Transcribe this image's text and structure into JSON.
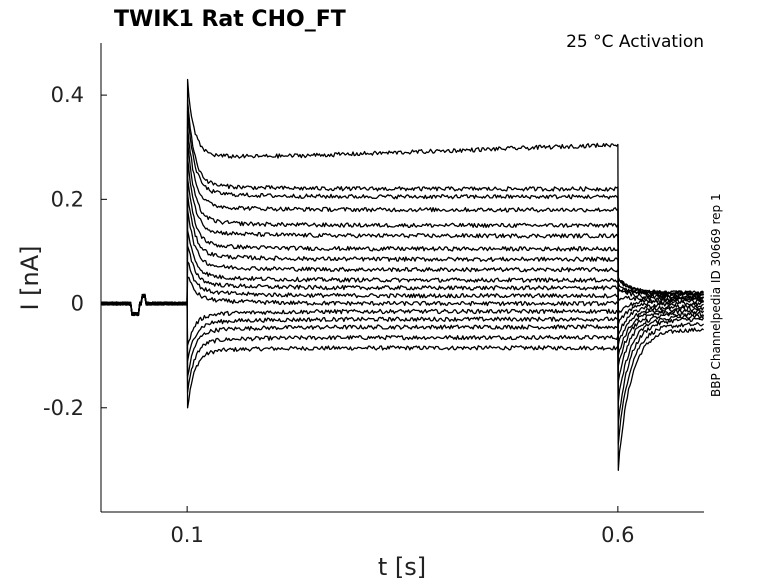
{
  "chart_data": {
    "type": "line",
    "title": "TWIK1  Rat  CHO_FT",
    "annotation": "25 °C  Activation",
    "side_label": "BBP Channelpedia ID 30669 rep 1",
    "xlabel": "t [s]",
    "ylabel": "I [nA]",
    "xlim": [
      0.0,
      0.7
    ],
    "ylim": [
      -0.4,
      0.5
    ],
    "x_ticks": [
      0.1,
      0.6
    ],
    "x_tick_labels": [
      "0.1",
      "0.6"
    ],
    "y_ticks": [
      -0.2,
      0,
      0.2,
      0.4
    ],
    "y_tick_labels": [
      "-0.2",
      "0",
      "0.2",
      "0.4"
    ],
    "grid": false,
    "protocol": {
      "step_on": 0.1,
      "step_off": 0.6,
      "prepulse_artifact": [
        0.04,
        0.05
      ]
    },
    "series": [
      {
        "steady": -0.085,
        "peak_on": -0.2,
        "tail_peak": -0.32,
        "tail_end": -0.05
      },
      {
        "steady": -0.065,
        "peak_on": -0.17,
        "tail_peak": -0.27,
        "tail_end": -0.04
      },
      {
        "steady": -0.045,
        "peak_on": -0.14,
        "tail_peak": -0.23,
        "tail_end": -0.03
      },
      {
        "steady": -0.03,
        "peak_on": -0.11,
        "tail_peak": -0.19,
        "tail_end": -0.025
      },
      {
        "steady": -0.015,
        "peak_on": -0.08,
        "tail_peak": -0.15,
        "tail_end": -0.02
      },
      {
        "steady": 0.0,
        "peak_on": 0.05,
        "tail_peak": -0.12,
        "tail_end": -0.015
      },
      {
        "steady": 0.015,
        "peak_on": 0.08,
        "tail_peak": -0.1,
        "tail_end": -0.01
      },
      {
        "steady": 0.03,
        "peak_on": 0.11,
        "tail_peak": -0.08,
        "tail_end": -0.005
      },
      {
        "steady": 0.045,
        "peak_on": 0.14,
        "tail_peak": -0.06,
        "tail_end": 0.0
      },
      {
        "steady": 0.065,
        "peak_on": 0.18,
        "tail_peak": -0.04,
        "tail_end": 0.005
      },
      {
        "steady": 0.085,
        "peak_on": 0.21,
        "tail_peak": -0.02,
        "tail_end": 0.008
      },
      {
        "steady": 0.105,
        "peak_on": 0.24,
        "tail_peak": 0.01,
        "tail_end": 0.01
      },
      {
        "steady": 0.13,
        "peak_on": 0.28,
        "tail_peak": 0.03,
        "tail_end": 0.012
      },
      {
        "steady": 0.15,
        "peak_on": 0.31,
        "tail_peak": 0.04,
        "tail_end": 0.015
      },
      {
        "steady": 0.18,
        "peak_on": 0.34,
        "tail_peak": 0.045,
        "tail_end": 0.018
      },
      {
        "steady": 0.205,
        "peak_on": 0.37,
        "tail_peak": 0.05,
        "tail_end": 0.02
      },
      {
        "steady": 0.22,
        "peak_on": 0.39,
        "tail_peak": 0.05,
        "tail_end": 0.02
      },
      {
        "steady": 0.29,
        "peak_on": 0.43,
        "tail_peak": 0.03,
        "tail_end": 0.02
      }
    ]
  }
}
